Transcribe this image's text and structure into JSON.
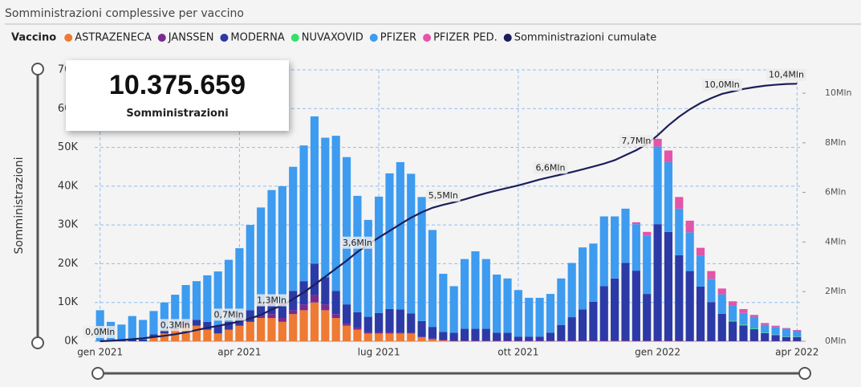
{
  "chart_data": {
    "type": "bar",
    "title": "Somministrazioni complessive per vaccino",
    "legend_title": "Vaccino",
    "y_label": "Somministrazioni",
    "categories": [
      "gen 2021",
      null,
      null,
      null,
      null,
      null,
      null,
      null,
      null,
      null,
      null,
      null,
      null,
      "apr 2021",
      null,
      null,
      null,
      null,
      null,
      null,
      null,
      null,
      null,
      null,
      null,
      null,
      "lug 2021",
      null,
      null,
      null,
      null,
      null,
      null,
      null,
      null,
      null,
      null,
      null,
      null,
      "ott 2021",
      null,
      null,
      null,
      null,
      null,
      null,
      null,
      null,
      null,
      null,
      null,
      null,
      "gen 2022",
      null,
      null,
      null,
      null,
      null,
      null,
      null,
      null,
      null,
      null,
      null,
      null,
      "apr 2022"
    ],
    "series": [
      {
        "name": "ASTRAZENECA",
        "color": "#ee7a33",
        "values": [
          0,
          0,
          0,
          0,
          0,
          1000,
          2000,
          3000,
          4000,
          4000,
          3000,
          2000,
          3000,
          4000,
          5000,
          6000,
          6000,
          5000,
          7000,
          8000,
          10000,
          8000,
          6000,
          4000,
          3000,
          2000,
          2000,
          2000,
          2000,
          2000,
          1000,
          500,
          200,
          0,
          0,
          0,
          0,
          0,
          0,
          0,
          0,
          0,
          0,
          0,
          0,
          0,
          0,
          0,
          0,
          0,
          0,
          0,
          0,
          0,
          0,
          0,
          0,
          0,
          0,
          0,
          0,
          0,
          0,
          0,
          0,
          0
        ]
      },
      {
        "name": "JANSSEN",
        "color": "#7b2a8e",
        "values": [
          0,
          0,
          0,
          0,
          0,
          0,
          0,
          0,
          0,
          0,
          0,
          0,
          0,
          0,
          0,
          500,
          1000,
          1000,
          1000,
          1500,
          2000,
          1500,
          1000,
          500,
          500,
          300,
          300,
          300,
          200,
          200,
          200,
          200,
          200,
          200,
          200,
          200,
          200,
          200,
          200,
          200,
          200,
          200,
          200,
          200,
          200,
          200,
          200,
          200,
          200,
          200,
          200,
          200,
          200,
          200,
          200,
          100,
          100,
          100,
          100,
          100,
          100,
          100,
          100,
          100,
          100,
          100
        ]
      },
      {
        "name": "MODERNA",
        "color": "#2b3aa6",
        "values": [
          0,
          0,
          300,
          500,
          500,
          800,
          1000,
          1000,
          1500,
          1500,
          2000,
          2000,
          2000,
          2000,
          3000,
          3000,
          4000,
          4000,
          5000,
          6000,
          8000,
          7000,
          6000,
          5000,
          4000,
          4000,
          5000,
          6000,
          6000,
          5000,
          4000,
          3000,
          2000,
          2000,
          3000,
          3000,
          3000,
          2000,
          2000,
          1000,
          1000,
          1000,
          2000,
          4000,
          6000,
          8000,
          10000,
          14000,
          16000,
          20000,
          18000,
          12000,
          30000,
          28000,
          22000,
          18000,
          14000,
          10000,
          7000,
          5000,
          4000,
          3000,
          2000,
          1500,
          1000,
          1000
        ]
      },
      {
        "name": "NUVAXOVID",
        "color": "#35e06a",
        "values": [
          0,
          0,
          0,
          0,
          0,
          0,
          0,
          0,
          0,
          0,
          0,
          0,
          0,
          0,
          0,
          0,
          0,
          0,
          0,
          0,
          0,
          0,
          0,
          0,
          0,
          0,
          0,
          0,
          0,
          0,
          0,
          0,
          0,
          0,
          0,
          0,
          0,
          0,
          0,
          0,
          0,
          0,
          0,
          0,
          0,
          0,
          0,
          0,
          0,
          0,
          0,
          0,
          0,
          0,
          0,
          0,
          0,
          0,
          0,
          200,
          200,
          200,
          100,
          100,
          100,
          100
        ]
      },
      {
        "name": "PFIZER",
        "color": "#3d9bf0",
        "values": [
          8000,
          5000,
          4000,
          6000,
          5000,
          6000,
          7000,
          8000,
          9000,
          10000,
          12000,
          14000,
          16000,
          18000,
          22000,
          25000,
          28000,
          30000,
          32000,
          35000,
          38000,
          36000,
          40000,
          38000,
          30000,
          25000,
          30000,
          35000,
          38000,
          36000,
          32000,
          25000,
          15000,
          12000,
          18000,
          20000,
          18000,
          15000,
          14000,
          12000,
          10000,
          10000,
          10000,
          12000,
          14000,
          16000,
          15000,
          18000,
          16000,
          14000,
          12000,
          15000,
          20000,
          18000,
          12000,
          10000,
          8000,
          6000,
          5000,
          4000,
          3000,
          3000,
          2000,
          2000,
          2000,
          1500
        ]
      },
      {
        "name": "PFIZER PED.",
        "color": "#e454a8",
        "values": [
          0,
          0,
          0,
          0,
          0,
          0,
          0,
          0,
          0,
          0,
          0,
          0,
          0,
          0,
          0,
          0,
          0,
          0,
          0,
          0,
          0,
          0,
          0,
          0,
          0,
          0,
          0,
          0,
          0,
          0,
          0,
          0,
          0,
          0,
          0,
          0,
          0,
          0,
          0,
          0,
          0,
          0,
          0,
          0,
          0,
          0,
          0,
          0,
          0,
          0,
          500,
          1000,
          2000,
          3000,
          3000,
          3000,
          2000,
          2000,
          1500,
          1000,
          1000,
          500,
          500,
          300,
          200,
          200
        ]
      },
      {
        "name": "Somministrazioni cumulate",
        "color": "#1c1f5a",
        "kind": "line",
        "axis": "y2",
        "values": [
          0,
          20000,
          50000,
          80000,
          120000,
          170000,
          220000,
          280000,
          360000,
          450000,
          540000,
          620000,
          700000,
          800000,
          920000,
          1060000,
          1280000,
          1450000,
          1700000,
          1970000,
          2280000,
          2600000,
          2930000,
          3250000,
          3600000,
          3900000,
          4180000,
          4450000,
          4720000,
          4980000,
          5200000,
          5380000,
          5500000,
          5600000,
          5720000,
          5850000,
          5970000,
          6080000,
          6180000,
          6280000,
          6400000,
          6520000,
          6620000,
          6720000,
          6820000,
          6930000,
          7040000,
          7160000,
          7300000,
          7500000,
          7700000,
          7950000,
          8300000,
          8700000,
          9050000,
          9350000,
          9600000,
          9800000,
          9970000,
          10070000,
          10170000,
          10240000,
          10300000,
          10340000,
          10370000,
          10380000
        ],
        "value_labels": [
          "0,0Mln",
          null,
          null,
          null,
          null,
          null,
          null,
          "0,3Mln",
          null,
          null,
          null,
          null,
          "0,7Mln",
          null,
          null,
          null,
          "1,3Mln",
          null,
          null,
          null,
          null,
          null,
          null,
          null,
          "3,6Mln",
          null,
          null,
          null,
          null,
          null,
          null,
          null,
          "5,5Mln",
          null,
          null,
          null,
          null,
          null,
          null,
          null,
          null,
          null,
          "6,6Mln",
          null,
          null,
          null,
          null,
          null,
          null,
          null,
          "7,7Mln",
          null,
          null,
          null,
          null,
          null,
          null,
          null,
          "10,0Mln",
          null,
          null,
          null,
          null,
          null,
          "10,4Mln",
          null
        ]
      }
    ],
    "ylim": [
      0,
      70000
    ],
    "yticks": [
      {
        "value": 0,
        "label": "0K"
      },
      {
        "value": 10000,
        "label": "10K"
      },
      {
        "value": 20000,
        "label": "20K"
      },
      {
        "value": 30000,
        "label": "30K"
      },
      {
        "value": 40000,
        "label": "40K"
      },
      {
        "value": 50000,
        "label": "50K"
      },
      {
        "value": 60000,
        "label": "60K"
      },
      {
        "value": 70000,
        "label": "70K"
      }
    ],
    "y2lim": [
      0,
      10940000
    ],
    "y2ticks": [
      {
        "value": 0,
        "label": "0Mln"
      },
      {
        "value": 2000000,
        "label": "2Mln"
      },
      {
        "value": 4000000,
        "label": "4Mln"
      },
      {
        "value": 6000000,
        "label": "6Mln"
      },
      {
        "value": 8000000,
        "label": "8Mln"
      },
      {
        "value": 10000000,
        "label": "10Mln"
      }
    ],
    "grid": true,
    "kpi": {
      "value": "10.375.659",
      "label": "Somministrazioni"
    }
  }
}
